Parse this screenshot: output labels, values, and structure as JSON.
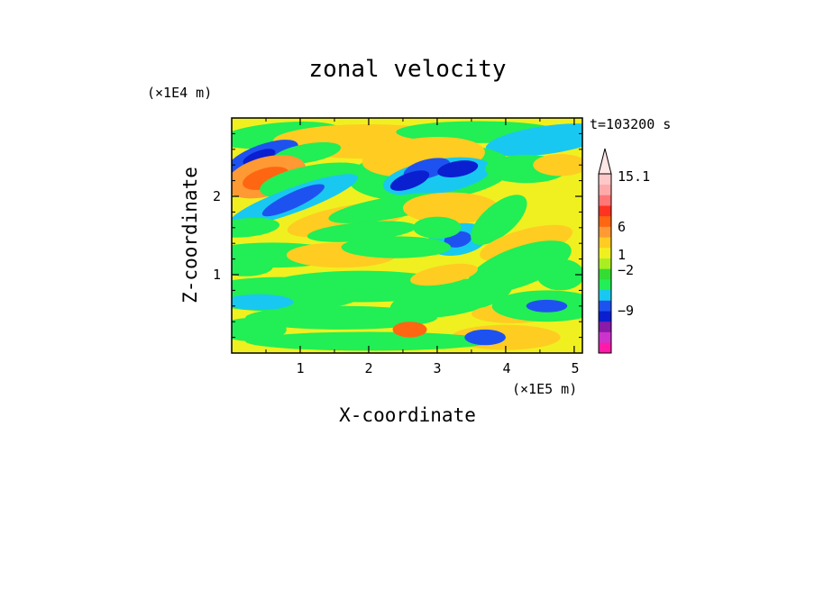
{
  "chart_data": {
    "type": "heatmap",
    "title": "zonal velocity",
    "xlabel": "X-coordinate",
    "ylabel": "Z-coordinate",
    "x_scale_label": "(×1E5 m)",
    "y_scale_label": "(×1E4 m)",
    "time_label": "t=103200 s",
    "xlim": [
      0,
      5.12
    ],
    "ylim": [
      0,
      3.0
    ],
    "x_ticks": [
      1,
      2,
      3,
      4,
      5
    ],
    "y_ticks": [
      1,
      2
    ],
    "colorbar": {
      "tick_labels": [
        "15.1",
        "6",
        "1",
        "−2",
        "−9"
      ],
      "colors": [
        "#ff1aaa",
        "#cc33cc",
        "#8a1aa8",
        "#0a1fd0",
        "#1e52f0",
        "#19c8f0",
        "#22ee55",
        "#33dd33",
        "#aaee22",
        "#f0f020",
        "#ffcc22",
        "#ff9933",
        "#ff6611",
        "#ff3322",
        "#ff7777",
        "#ffaaaa",
        "#ffc8c8"
      ],
      "extend": "max"
    }
  }
}
